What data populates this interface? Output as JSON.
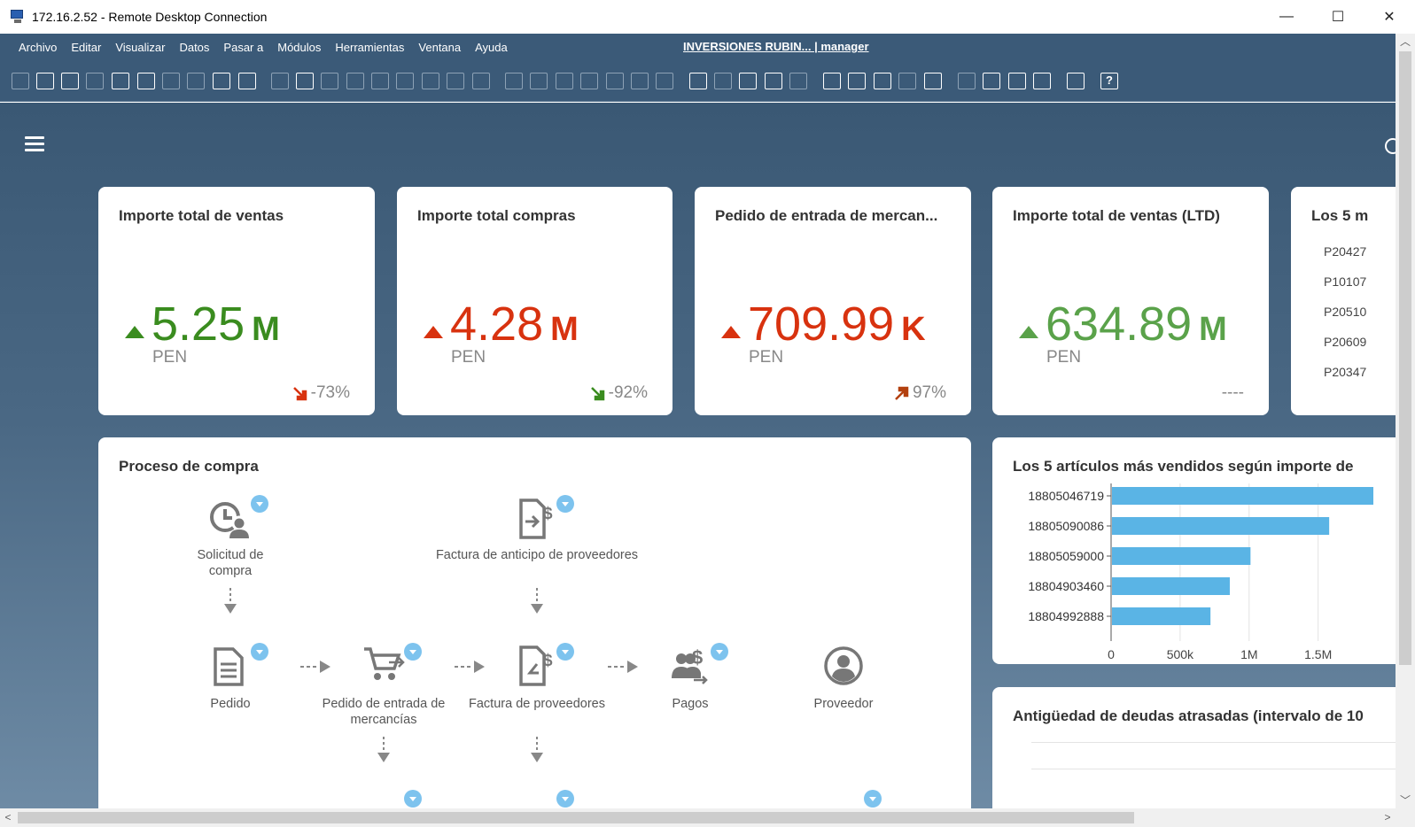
{
  "window": {
    "title": "172.16.2.52 - Remote Desktop Connection",
    "minimize_glyph": "—",
    "maximize_glyph": "☐",
    "close_glyph": "✕"
  },
  "menu": {
    "items": [
      "Archivo",
      "Editar",
      "Visualizar",
      "Datos",
      "Pasar a",
      "Módulos",
      "Herramientas",
      "Ventana",
      "Ayuda"
    ],
    "session": "INVERSIONES RUBIN... | manager"
  },
  "toolbar": {
    "help_glyph": "?"
  },
  "kpis": [
    {
      "title": "Importe total de ventas",
      "value": "5.25",
      "unit": "M",
      "currency": "PEN",
      "delta": "-73%",
      "value_color": "#3a8c1f",
      "trend": "up",
      "delta_arrow": "down",
      "delta_arrow_color": "#d8320f"
    },
    {
      "title": "Importe total compras",
      "value": "4.28",
      "unit": "M",
      "currency": "PEN",
      "delta": "-92%",
      "value_color": "#d8320f",
      "trend": "up",
      "delta_arrow": "down",
      "delta_arrow_color": "#3a8c1f"
    },
    {
      "title": "Pedido de entrada de mercan...",
      "value": "709.99",
      "unit": "K",
      "currency": "PEN",
      "delta": "97%",
      "value_color": "#d8320f",
      "trend": "up",
      "delta_arrow": "up",
      "delta_arrow_color": "#b3400f"
    },
    {
      "title": "Importe total de ventas (LTD)",
      "value": "634.89",
      "unit": "M",
      "currency": "PEN",
      "delta": "----",
      "value_color": "#5aa24a",
      "trend": "up",
      "delta_arrow": "none"
    }
  ],
  "top5_card": {
    "title": "Los 5 m",
    "items": [
      "P20427",
      "P10107",
      "P20510",
      "P20609",
      "P20347"
    ]
  },
  "process": {
    "title": "Proceso de compra",
    "nodes": {
      "solicitud": "Solicitud de compra",
      "anticipo": "Factura de anticipo de proveedores",
      "pedido": "Pedido",
      "entrada": "Pedido de entrada de mercancías",
      "factura": "Factura de proveedores",
      "pagos": "Pagos",
      "proveedor": "Proveedor"
    }
  },
  "top_items": {
    "title": "Los 5 artículos más vendidos según importe de",
    "chart_data": {
      "type": "bar",
      "orientation": "horizontal",
      "categories": [
        "18805046719",
        "18805090086",
        "18805059000",
        "18804903460",
        "18804992888"
      ],
      "values": [
        1900000,
        1580000,
        1010000,
        860000,
        720000
      ],
      "xlim": [
        0,
        1900000
      ],
      "xticks": [
        0,
        500000,
        1000000,
        1500000
      ],
      "xtick_labels": [
        "0",
        "500k",
        "1M",
        "1.5M"
      ],
      "bar_color": "#5ab4e5",
      "grid": true
    }
  },
  "aging": {
    "title": "Antigüedad de deudas atrasadas (intervalo de 10"
  }
}
